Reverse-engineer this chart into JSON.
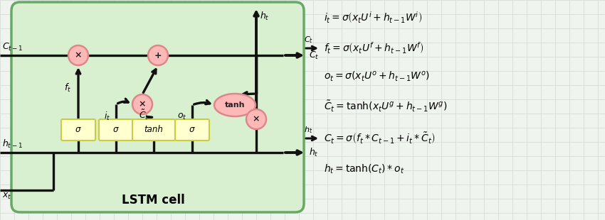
{
  "bg_color": "#f0f4ee",
  "cell_bg": "#d8f0d0",
  "cell_edge": "#66aa66",
  "box_fill": "#ffffd0",
  "box_edge": "#cccc44",
  "circle_fill": "#ffb8b8",
  "circle_edge": "#dd8888",
  "lc": "#111111",
  "grid_color": "#d4d8d4",
  "lstm_label": "LSTM cell",
  "equations": [
    "$i_t = \\sigma\\left(x_tU^i + h_{t-1}W^i\\right)$",
    "$f_t = \\sigma\\left(x_tU^f + h_{t-1}W^f\\right)$",
    "$o_t = \\sigma\\left(x_tU^o + h_{t-1}W^o\\right)$",
    "$\\tilde{C}_t = \\mathrm{tanh}\\left(x_tU^g + h_{t-1}W^g\\right)$",
    "$C_t = \\sigma\\left(f_t * C_{t-1} + i_t * \\tilde{C}_t\\right)$",
    "$h_t = \\mathrm{tanh}(C_t) * o_t$"
  ],
  "eq_labels_left": [
    "$C_t$",
    "$h_t$"
  ],
  "eq_label_rows": [
    1,
    4
  ]
}
